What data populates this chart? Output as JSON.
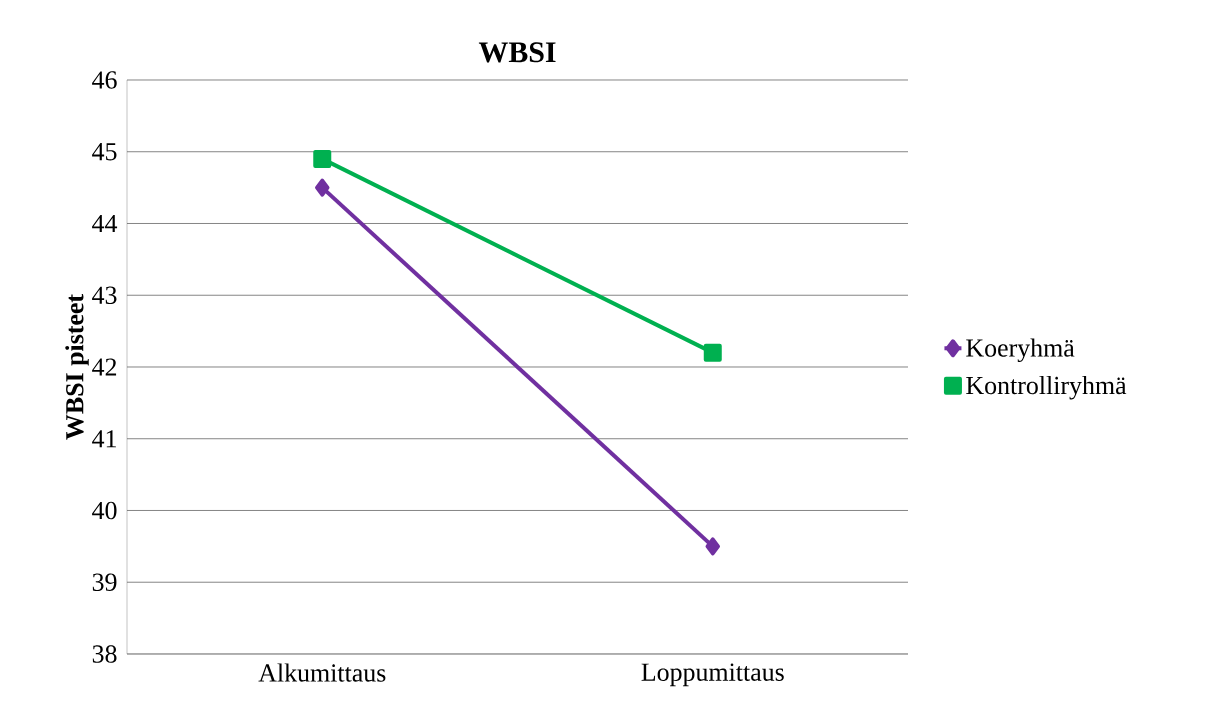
{
  "chart_data": {
    "type": "line",
    "title": "WBSI",
    "ylabel": "WBSI pisteet",
    "categories": [
      "Alkumittaus",
      "Loppumittaus"
    ],
    "series": [
      {
        "name": "Koeryhmä",
        "color": "#7030a0",
        "values": [
          44.5,
          39.5
        ],
        "marker": "diamond"
      },
      {
        "name": "Kontrolliryhmä",
        "color": "#00b050",
        "values": [
          44.9,
          42.2
        ],
        "marker": "square"
      }
    ],
    "ylim": [
      38,
      46
    ],
    "yticks": [
      38,
      39,
      40,
      41,
      42,
      43,
      44,
      45,
      46
    ],
    "grid": "y",
    "legend": "right",
    "line_style": "solid"
  }
}
